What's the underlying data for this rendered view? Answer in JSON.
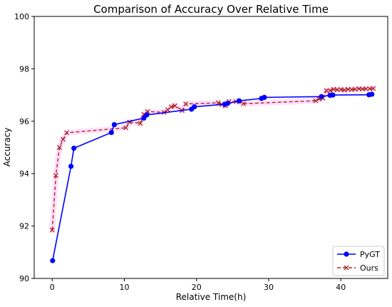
{
  "chart_data": {
    "type": "line",
    "title": "Comparison of Accuracy Over Relative Time",
    "xlabel": "Relative Time(h)",
    "ylabel": "Accuracy",
    "xlim": [
      -2.5,
      46.5
    ],
    "ylim": [
      90,
      100
    ],
    "x_ticks": [
      0,
      10,
      20,
      30,
      40
    ],
    "y_ticks": [
      90,
      92,
      94,
      96,
      98,
      100
    ],
    "grid": false,
    "legend_position": "bottom-right",
    "series": [
      {
        "name": "PyGT",
        "color": "#0000ff",
        "line_style": "solid",
        "marker": "circle",
        "points": [
          [
            0.05,
            90.68
          ],
          [
            2.6,
            94.28
          ],
          [
            3.0,
            94.97
          ],
          [
            8.2,
            95.57
          ],
          [
            8.6,
            95.87
          ],
          [
            12.7,
            96.12
          ],
          [
            13.1,
            96.24
          ],
          [
            19.3,
            96.46
          ],
          [
            19.7,
            96.55
          ],
          [
            23.9,
            96.65
          ],
          [
            24.3,
            96.68
          ],
          [
            25.9,
            96.78
          ],
          [
            29.0,
            96.87
          ],
          [
            29.4,
            96.91
          ],
          [
            37.3,
            96.94
          ],
          [
            38.5,
            96.99
          ],
          [
            38.9,
            97.0
          ],
          [
            43.9,
            97.01
          ],
          [
            44.3,
            97.03
          ]
        ]
      },
      {
        "name": "Ours",
        "color": "#b22222",
        "line_style": "dashed",
        "marker": "x",
        "points": [
          [
            0.0,
            91.85
          ],
          [
            0.5,
            93.93
          ],
          [
            1.0,
            95.0
          ],
          [
            1.5,
            95.31
          ],
          [
            2.0,
            95.56
          ],
          [
            10.2,
            95.75
          ],
          [
            10.7,
            95.97
          ],
          [
            12.2,
            95.92
          ],
          [
            12.7,
            96.26
          ],
          [
            13.2,
            96.37
          ],
          [
            15.5,
            96.34
          ],
          [
            16.0,
            96.44
          ],
          [
            16.5,
            96.55
          ],
          [
            17.0,
            96.59
          ],
          [
            18.0,
            96.41
          ],
          [
            18.5,
            96.66
          ],
          [
            23.0,
            96.7
          ],
          [
            23.5,
            96.64
          ],
          [
            24.0,
            96.59
          ],
          [
            24.5,
            96.75
          ],
          [
            25.5,
            96.75
          ],
          [
            26.5,
            96.67
          ],
          [
            36.5,
            96.78
          ],
          [
            37.0,
            96.85
          ],
          [
            37.5,
            96.88
          ],
          [
            38.0,
            97.17
          ],
          [
            38.5,
            97.17
          ],
          [
            39.0,
            97.22
          ],
          [
            39.5,
            97.2
          ],
          [
            40.0,
            97.21
          ],
          [
            40.5,
            97.19
          ],
          [
            41.0,
            97.22
          ],
          [
            41.5,
            97.21
          ],
          [
            42.0,
            97.22
          ],
          [
            42.5,
            97.24
          ],
          [
            43.0,
            97.23
          ],
          [
            43.5,
            97.24
          ],
          [
            44.0,
            97.24
          ],
          [
            44.5,
            97.25
          ]
        ]
      }
    ]
  }
}
